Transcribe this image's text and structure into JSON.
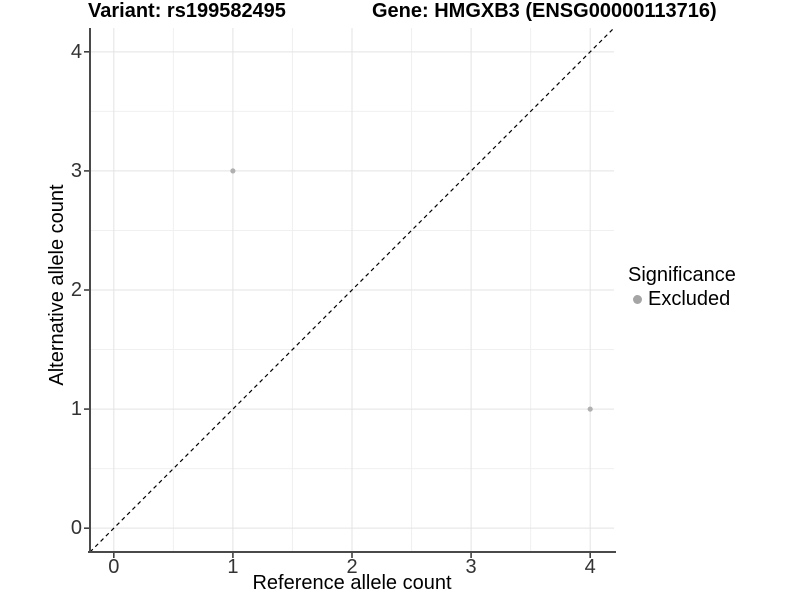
{
  "chart_data": {
    "type": "scatter",
    "titles": {
      "left": "Variant: rs199582495",
      "right": "Gene: HMGXB3 (ENSG00000113716)"
    },
    "x_axis": {
      "label": "Reference allele count",
      "tick_labels": [
        "0",
        "1",
        "2",
        "3",
        "4"
      ],
      "tick_values": [
        0,
        1,
        2,
        3,
        4
      ],
      "minor_ticks": [
        0.5,
        1.5,
        2.5,
        3.5
      ],
      "range": [
        -0.2,
        4.2
      ]
    },
    "y_axis": {
      "label": "Alternative allele count",
      "tick_labels": [
        "0",
        "1",
        "2",
        "3",
        "4"
      ],
      "tick_values": [
        0,
        1,
        2,
        3,
        4
      ],
      "minor_ticks": [
        0.5,
        1.5,
        2.5,
        3.5
      ],
      "range": [
        -0.2,
        4.2
      ]
    },
    "series": [
      {
        "name": "Excluded",
        "color": "#b0b0b0",
        "points": [
          [
            1,
            3
          ],
          [
            4,
            1
          ]
        ]
      }
    ],
    "identity_line": {
      "style": "dashed",
      "color": "#000000",
      "from": [
        -0.2,
        -0.2
      ],
      "to": [
        4.2,
        4.2
      ]
    },
    "legend": {
      "title": "Significance",
      "position": "right",
      "items": [
        {
          "label": "Excluded",
          "color": "#a5a5a5",
          "marker": "circle"
        }
      ]
    },
    "grid": true,
    "colors": {
      "background": "#ffffff",
      "grid_major": "#e3e3e3",
      "grid_minor": "#f0f0f0",
      "axis_line": "#4a4a4a",
      "tick_mark": "#333333",
      "tick_text": "#333333"
    }
  }
}
